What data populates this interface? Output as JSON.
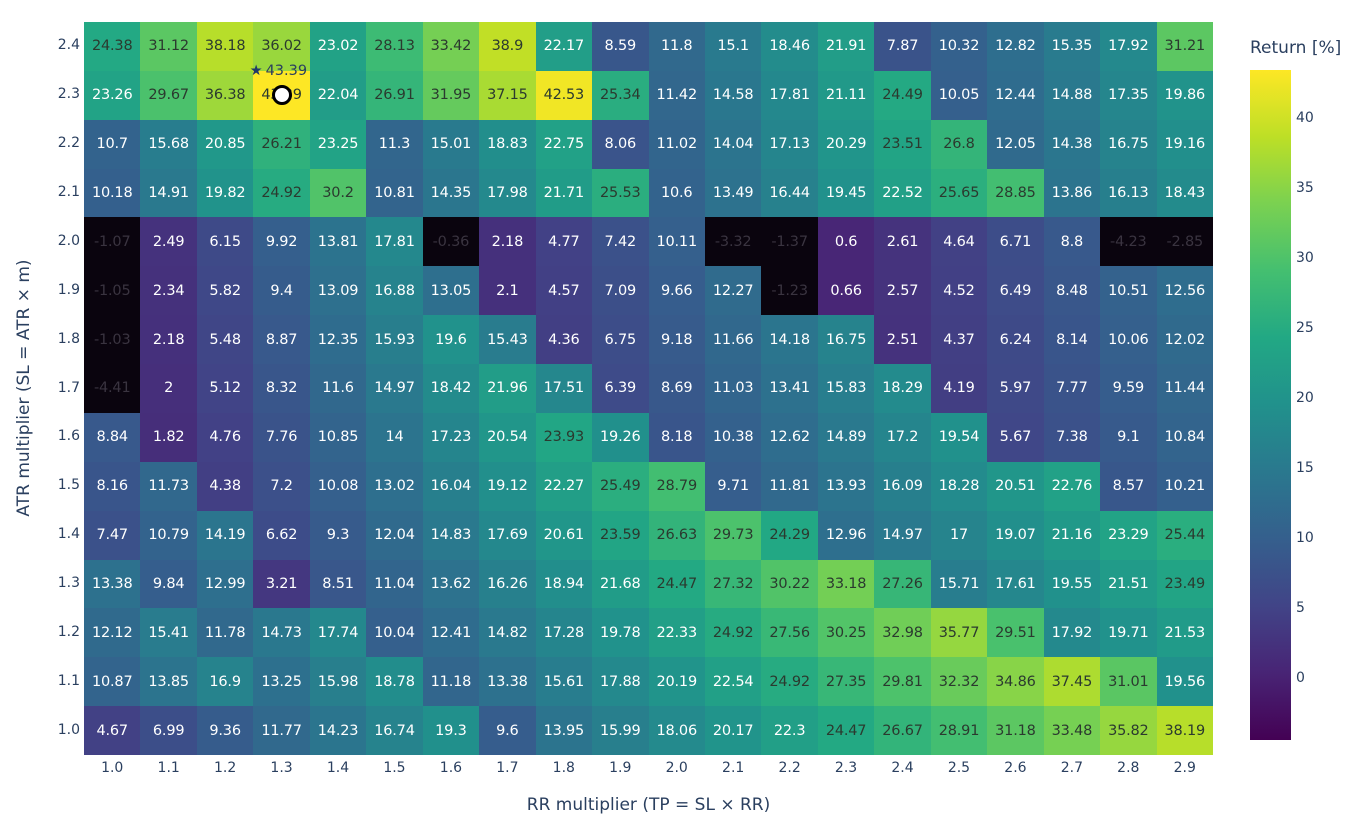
{
  "chart_data": {
    "type": "heatmap",
    "title": "",
    "xlabel": "RR multiplier (TP = SL × RR)",
    "ylabel": "ATR multiplier (SL = ATR × m)",
    "x": [
      "1.0",
      "1.1",
      "1.2",
      "1.3",
      "1.4",
      "1.5",
      "1.6",
      "1.7",
      "1.8",
      "1.9",
      "2.0",
      "2.1",
      "2.2",
      "2.3",
      "2.4",
      "2.5",
      "2.6",
      "2.7",
      "2.8",
      "2.9"
    ],
    "y_top_to_bottom": [
      "2.4",
      "2.3",
      "2.2",
      "2.1",
      "2.0",
      "1.9",
      "1.8",
      "1.7",
      "1.6",
      "1.5",
      "1.4",
      "1.3",
      "1.2",
      "1.1",
      "1.0"
    ],
    "z": [
      [
        24.38,
        31.12,
        38.18,
        36.02,
        23.02,
        28.13,
        33.42,
        38.9,
        22.17,
        8.59,
        11.8,
        15.1,
        18.46,
        21.91,
        7.87,
        10.32,
        12.82,
        15.35,
        17.92,
        31.21
      ],
      [
        23.26,
        29.67,
        36.38,
        43.39,
        22.04,
        26.91,
        31.95,
        37.15,
        42.53,
        25.34,
        11.42,
        14.58,
        17.81,
        21.11,
        24.49,
        10.05,
        12.44,
        14.88,
        17.35,
        19.86
      ],
      [
        10.7,
        15.68,
        20.85,
        26.21,
        23.25,
        11.3,
        15.01,
        18.83,
        22.75,
        8.06,
        11.02,
        14.04,
        17.13,
        20.29,
        23.51,
        26.8,
        12.05,
        14.38,
        16.75,
        19.16
      ],
      [
        10.18,
        14.91,
        19.82,
        24.92,
        30.2,
        10.81,
        14.35,
        17.98,
        21.71,
        25.53,
        10.6,
        13.49,
        16.44,
        19.45,
        22.52,
        25.65,
        28.85,
        13.86,
        16.13,
        18.43
      ],
      [
        -1.07,
        2.49,
        6.15,
        9.92,
        13.81,
        17.81,
        -0.36,
        2.18,
        4.77,
        7.42,
        10.11,
        -3.32,
        -1.37,
        0.6,
        2.61,
        4.64,
        6.71,
        8.8,
        -4.23,
        -2.85
      ],
      [
        -1.05,
        2.34,
        5.82,
        9.4,
        13.09,
        16.88,
        13.05,
        2.1,
        4.57,
        7.09,
        9.66,
        12.27,
        -1.23,
        0.66,
        2.57,
        4.52,
        6.49,
        8.48,
        10.51,
        12.56
      ],
      [
        -1.03,
        2.18,
        5.48,
        8.87,
        12.35,
        15.93,
        19.6,
        15.43,
        4.36,
        6.75,
        9.18,
        11.66,
        14.18,
        16.75,
        2.51,
        4.37,
        6.24,
        8.14,
        10.06,
        12.02
      ],
      [
        -4.41,
        2.0,
        5.12,
        8.32,
        11.6,
        14.97,
        18.42,
        21.96,
        17.51,
        6.39,
        8.69,
        11.03,
        13.41,
        15.83,
        18.29,
        4.19,
        5.97,
        7.77,
        9.59,
        11.44
      ],
      [
        8.84,
        1.82,
        4.76,
        7.76,
        10.85,
        14.0,
        17.23,
        20.54,
        23.93,
        19.26,
        8.18,
        10.38,
        12.62,
        14.89,
        17.2,
        19.54,
        5.67,
        7.38,
        9.1,
        10.84
      ],
      [
        8.16,
        11.73,
        4.38,
        7.2,
        10.08,
        13.02,
        16.04,
        19.12,
        22.27,
        25.49,
        28.79,
        9.71,
        11.81,
        13.93,
        16.09,
        18.28,
        20.51,
        22.76,
        8.57,
        10.21
      ],
      [
        7.47,
        10.79,
        14.19,
        6.62,
        9.3,
        12.04,
        14.83,
        17.69,
        20.61,
        23.59,
        26.63,
        29.73,
        24.29,
        12.96,
        14.97,
        17.0,
        19.07,
        21.16,
        23.29,
        25.44
      ],
      [
        13.38,
        9.84,
        12.99,
        3.21,
        8.51,
        11.04,
        13.62,
        16.26,
        18.94,
        21.68,
        24.47,
        27.32,
        30.22,
        33.18,
        27.26,
        15.71,
        17.61,
        19.55,
        21.51,
        23.49
      ],
      [
        12.12,
        15.41,
        11.78,
        14.73,
        17.74,
        10.04,
        12.41,
        14.82,
        17.28,
        19.78,
        22.33,
        24.92,
        27.56,
        30.25,
        32.98,
        35.77,
        29.51,
        17.92,
        19.71,
        21.53
      ],
      [
        10.87,
        13.85,
        16.9,
        13.25,
        15.98,
        18.78,
        11.18,
        13.38,
        15.61,
        17.88,
        20.19,
        22.54,
        24.92,
        27.35,
        29.81,
        32.32,
        34.86,
        37.45,
        31.01,
        19.56
      ],
      [
        4.67,
        6.99,
        9.36,
        11.77,
        14.23,
        16.74,
        19.3,
        9.6,
        13.95,
        15.99,
        18.06,
        20.17,
        22.3,
        24.47,
        26.67,
        28.91,
        31.18,
        33.48,
        35.82,
        38.19
      ]
    ],
    "text_display": {
      "1.3|2.3": "43.39"
    },
    "colorscale": "Viridis",
    "zmin": -4.41,
    "zmax": 43.39,
    "colorbar": {
      "title": "Return [%]",
      "ticks": [
        0,
        5,
        10,
        15,
        20,
        25,
        30,
        35,
        40
      ],
      "tick_labels": [
        "0",
        "5",
        "10",
        "15",
        "20",
        "25",
        "30",
        "35",
        "40"
      ]
    },
    "annotations": [
      {
        "text": "★ 43.39",
        "x": "1.3",
        "y": "2.3",
        "type": "best-marker",
        "marker": "white circle with black outline"
      }
    ],
    "negative_cells_rendered": "near-black",
    "grid": false,
    "legend_position": "right (colorbar)"
  },
  "annotation": {
    "star": "★",
    "best_value": "43.39"
  }
}
